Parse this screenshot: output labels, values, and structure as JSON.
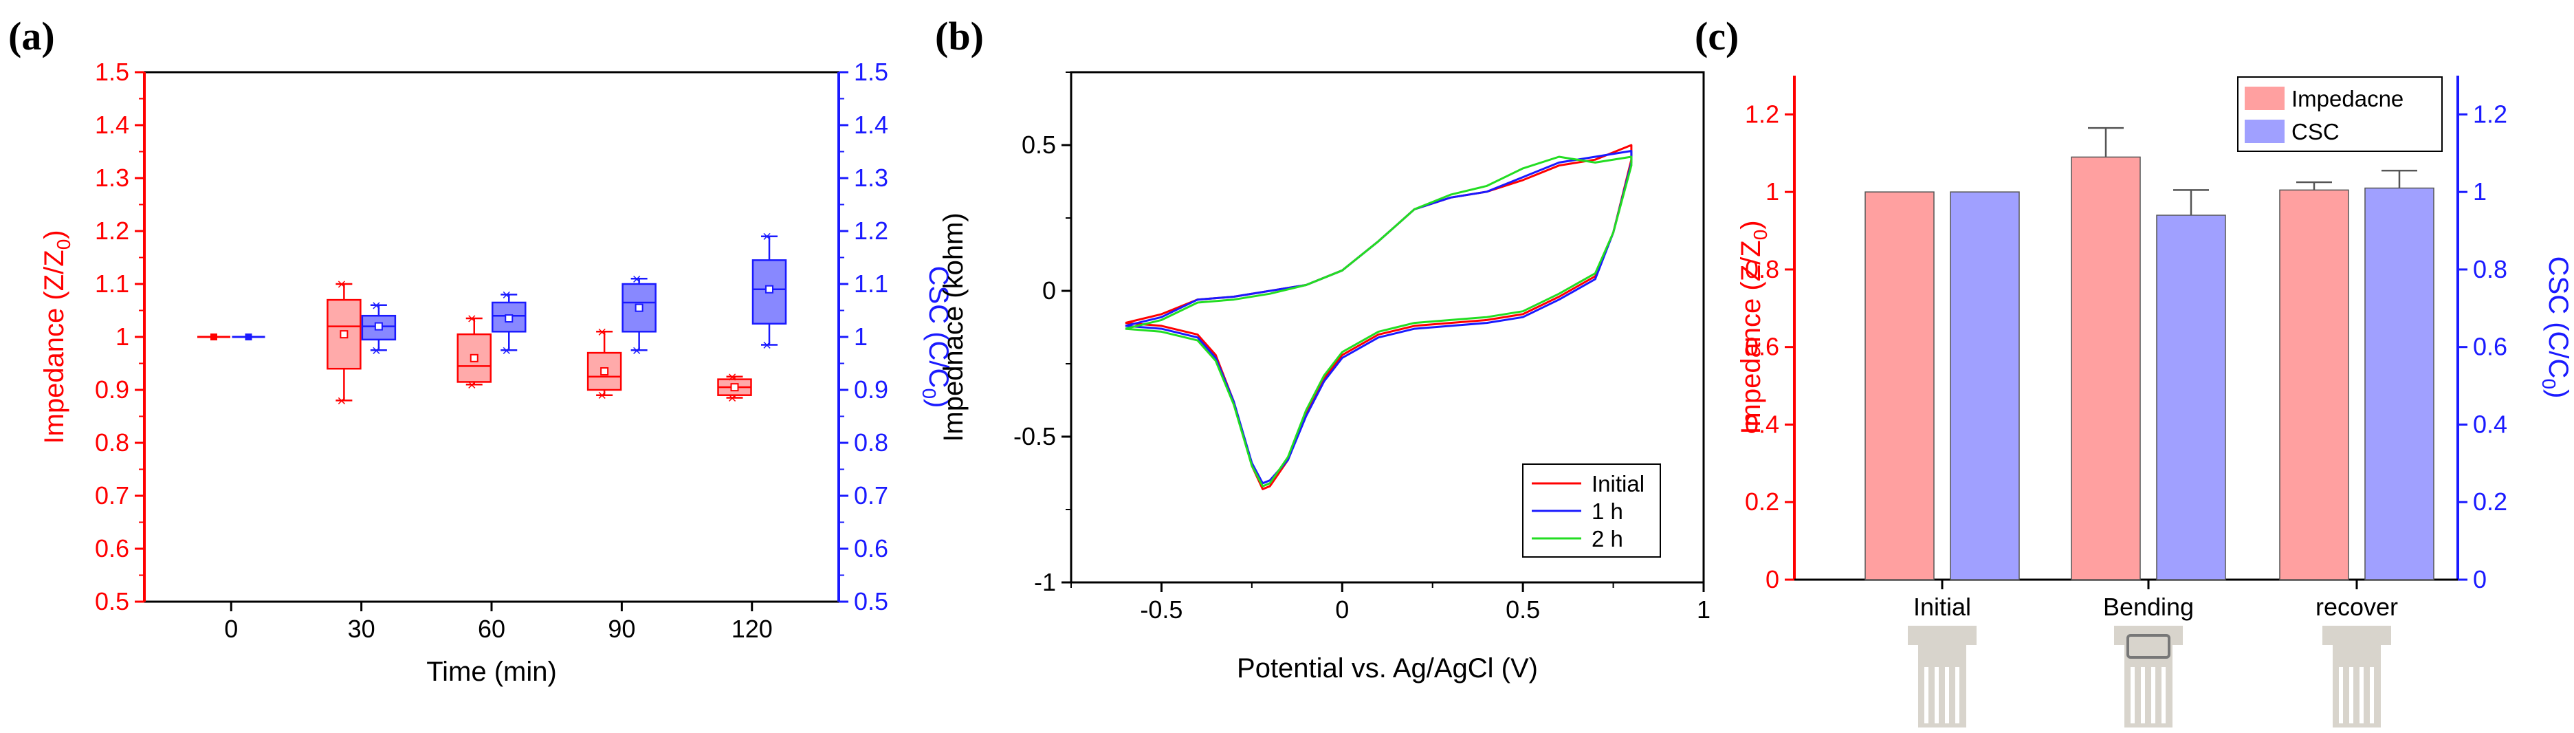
{
  "panels": {
    "a": {
      "label": "(a)"
    },
    "b": {
      "label": "(b)"
    },
    "c": {
      "label": "(c)"
    }
  },
  "colors": {
    "red": "#ff0000",
    "blue": "#1a1aff",
    "black": "#000000",
    "green": "#22dd22",
    "bar_red": "#ffa0a0",
    "bar_blue": "#a0a0ff",
    "box_red": "#ffaaaa",
    "box_blue": "#8888ff",
    "device": "#d8d4cc"
  },
  "chart_data": [
    {
      "type": "box",
      "panel": "a",
      "xlabel": "Time (min)",
      "ylabel_left": "Impedance (Z/Z",
      "ylabel_left_sub": "0",
      "ylabel_left_end": ")",
      "ylabel_right": "CSC (C/C",
      "ylabel_right_sub": "0",
      "ylabel_right_end": ")",
      "xlim": [
        -20,
        140
      ],
      "xticks": [
        "0",
        "30",
        "60",
        "90",
        "120"
      ],
      "xtick_values": [
        0,
        30,
        60,
        90,
        120
      ],
      "ylim": [
        0.5,
        1.5
      ],
      "yticks": [
        "0.5",
        "0.6",
        "0.7",
        "0.8",
        "0.9",
        "1",
        "1.1",
        "1.2",
        "1.3",
        "1.4",
        "1.5"
      ],
      "ytick_values": [
        0.5,
        0.6,
        0.7,
        0.8,
        0.9,
        1.0,
        1.1,
        1.2,
        1.3,
        1.4,
        1.5
      ],
      "series": [
        {
          "name": "Impedance",
          "color": "red",
          "offset": -4,
          "boxes": [
            {
              "x": 0,
              "min": 1.0,
              "q1": 1.0,
              "median": 1.0,
              "q3": 1.0,
              "max": 1.0,
              "mean": 1.0
            },
            {
              "x": 30,
              "min": 0.88,
              "q1": 0.94,
              "median": 1.02,
              "q3": 1.07,
              "max": 1.1,
              "mean": 1.005
            },
            {
              "x": 60,
              "min": 0.91,
              "q1": 0.915,
              "median": 0.945,
              "q3": 1.005,
              "max": 1.035,
              "mean": 0.96
            },
            {
              "x": 90,
              "min": 0.89,
              "q1": 0.9,
              "median": 0.925,
              "q3": 0.97,
              "max": 1.01,
              "mean": 0.935
            },
            {
              "x": 120,
              "min": 0.885,
              "q1": 0.89,
              "median": 0.905,
              "q3": 0.92,
              "max": 0.925,
              "mean": 0.905
            }
          ]
        },
        {
          "name": "CSC",
          "color": "blue",
          "offset": 4,
          "boxes": [
            {
              "x": 0,
              "min": 1.0,
              "q1": 1.0,
              "median": 1.0,
              "q3": 1.0,
              "max": 1.0,
              "mean": 1.0
            },
            {
              "x": 30,
              "min": 0.975,
              "q1": 0.995,
              "median": 1.02,
              "q3": 1.04,
              "max": 1.06,
              "mean": 1.02
            },
            {
              "x": 60,
              "min": 0.975,
              "q1": 1.01,
              "median": 1.04,
              "q3": 1.065,
              "max": 1.08,
              "mean": 1.035
            },
            {
              "x": 90,
              "min": 0.975,
              "q1": 1.01,
              "median": 1.065,
              "q3": 1.1,
              "max": 1.11,
              "mean": 1.055
            },
            {
              "x": 120,
              "min": 0.985,
              "q1": 1.025,
              "median": 1.09,
              "q3": 1.145,
              "max": 1.19,
              "mean": 1.09
            }
          ]
        }
      ]
    },
    {
      "type": "line",
      "panel": "b",
      "xlabel": "Potential vs. Ag/AgCl (V)",
      "ylabel": "Impednace (kohm)",
      "xlim": [
        -0.75,
        1.0
      ],
      "ylim": [
        -1.0,
        0.75
      ],
      "xticks": [
        "-0.5",
        "0",
        "0.5",
        "1"
      ],
      "xtick_values": [
        -0.5,
        0,
        0.5,
        1.0
      ],
      "yticks": [
        "-1",
        "-0.5",
        "0",
        "0.5"
      ],
      "ytick_values": [
        -1.0,
        -0.5,
        0,
        0.5
      ],
      "legend_position": "bottom-right",
      "series": [
        {
          "name": "Initial",
          "color": "red",
          "x": [
            -0.6,
            -0.5,
            -0.4,
            -0.3,
            -0.2,
            -0.1,
            0.0,
            0.1,
            0.2,
            0.3,
            0.4,
            0.5,
            0.6,
            0.7,
            0.8,
            0.8,
            0.75,
            0.7,
            0.6,
            0.5,
            0.4,
            0.3,
            0.2,
            0.1,
            0.0,
            -0.05,
            -0.1,
            -0.15,
            -0.2,
            -0.22,
            -0.25,
            -0.3,
            -0.35,
            -0.4,
            -0.5,
            -0.6
          ],
          "y": [
            -0.11,
            -0.08,
            -0.03,
            -0.02,
            0.0,
            0.02,
            0.07,
            0.17,
            0.28,
            0.32,
            0.34,
            0.38,
            0.43,
            0.45,
            0.5,
            0.45,
            0.2,
            0.05,
            -0.02,
            -0.08,
            -0.1,
            -0.11,
            -0.12,
            -0.15,
            -0.22,
            -0.3,
            -0.42,
            -0.58,
            -0.67,
            -0.68,
            -0.6,
            -0.38,
            -0.22,
            -0.15,
            -0.12,
            -0.11
          ]
        },
        {
          "name": "1 h",
          "color": "blue",
          "x": [
            -0.6,
            -0.5,
            -0.4,
            -0.3,
            -0.2,
            -0.1,
            0.0,
            0.1,
            0.2,
            0.3,
            0.4,
            0.5,
            0.6,
            0.7,
            0.8,
            0.8,
            0.75,
            0.7,
            0.6,
            0.5,
            0.4,
            0.3,
            0.2,
            0.1,
            0.0,
            -0.05,
            -0.1,
            -0.15,
            -0.2,
            -0.22,
            -0.25,
            -0.3,
            -0.35,
            -0.4,
            -0.5,
            -0.6
          ],
          "y": [
            -0.12,
            -0.09,
            -0.03,
            -0.02,
            0.0,
            0.02,
            0.07,
            0.17,
            0.28,
            0.32,
            0.34,
            0.39,
            0.44,
            0.46,
            0.48,
            0.44,
            0.2,
            0.04,
            -0.03,
            -0.09,
            -0.11,
            -0.12,
            -0.13,
            -0.16,
            -0.23,
            -0.31,
            -0.43,
            -0.58,
            -0.65,
            -0.66,
            -0.59,
            -0.38,
            -0.23,
            -0.16,
            -0.13,
            -0.12
          ]
        },
        {
          "name": "2 h",
          "color": "green",
          "x": [
            -0.6,
            -0.5,
            -0.4,
            -0.3,
            -0.2,
            -0.1,
            0.0,
            0.1,
            0.2,
            0.3,
            0.4,
            0.5,
            0.6,
            0.7,
            0.8,
            0.8,
            0.75,
            0.7,
            0.6,
            0.5,
            0.4,
            0.3,
            0.2,
            0.1,
            0.0,
            -0.05,
            -0.1,
            -0.15,
            -0.2,
            -0.22,
            -0.25,
            -0.3,
            -0.35,
            -0.4,
            -0.5,
            -0.6
          ],
          "y": [
            -0.13,
            -0.1,
            -0.04,
            -0.03,
            -0.01,
            0.02,
            0.07,
            0.17,
            0.28,
            0.33,
            0.36,
            0.42,
            0.46,
            0.44,
            0.46,
            0.43,
            0.2,
            0.06,
            -0.01,
            -0.07,
            -0.09,
            -0.1,
            -0.11,
            -0.14,
            -0.21,
            -0.29,
            -0.41,
            -0.57,
            -0.66,
            -0.67,
            -0.6,
            -0.39,
            -0.24,
            -0.17,
            -0.14,
            -0.13
          ]
        }
      ]
    },
    {
      "type": "bar",
      "panel": "c",
      "categories": [
        "Initial",
        "Bending",
        "recover"
      ],
      "ylabel_left": "Impedance (Z/Z",
      "ylabel_left_sub": "0",
      "ylabel_left_end": ")",
      "ylabel_right": "CSC (C/C",
      "ylabel_right_sub": "0",
      "ylabel_right_end": ")",
      "ylim": [
        0,
        1.3
      ],
      "yticks": [
        "0",
        "0.2",
        "0.4",
        "0.6",
        "0.8",
        "1",
        "1.2"
      ],
      "ytick_values": [
        0,
        0.2,
        0.4,
        0.6,
        0.8,
        1.0,
        1.2
      ],
      "legend_position": "top-right",
      "series": [
        {
          "name": "Impedacne",
          "color": "bar_red",
          "values": [
            1.0,
            1.09,
            1.005
          ],
          "errors": [
            0.0,
            0.075,
            0.02
          ]
        },
        {
          "name": "CSC",
          "color": "bar_blue",
          "values": [
            1.0,
            0.94,
            1.01
          ],
          "errors": [
            0.0,
            0.065,
            0.045
          ]
        }
      ],
      "device_icons": [
        "flat",
        "bent",
        "flat"
      ]
    }
  ]
}
